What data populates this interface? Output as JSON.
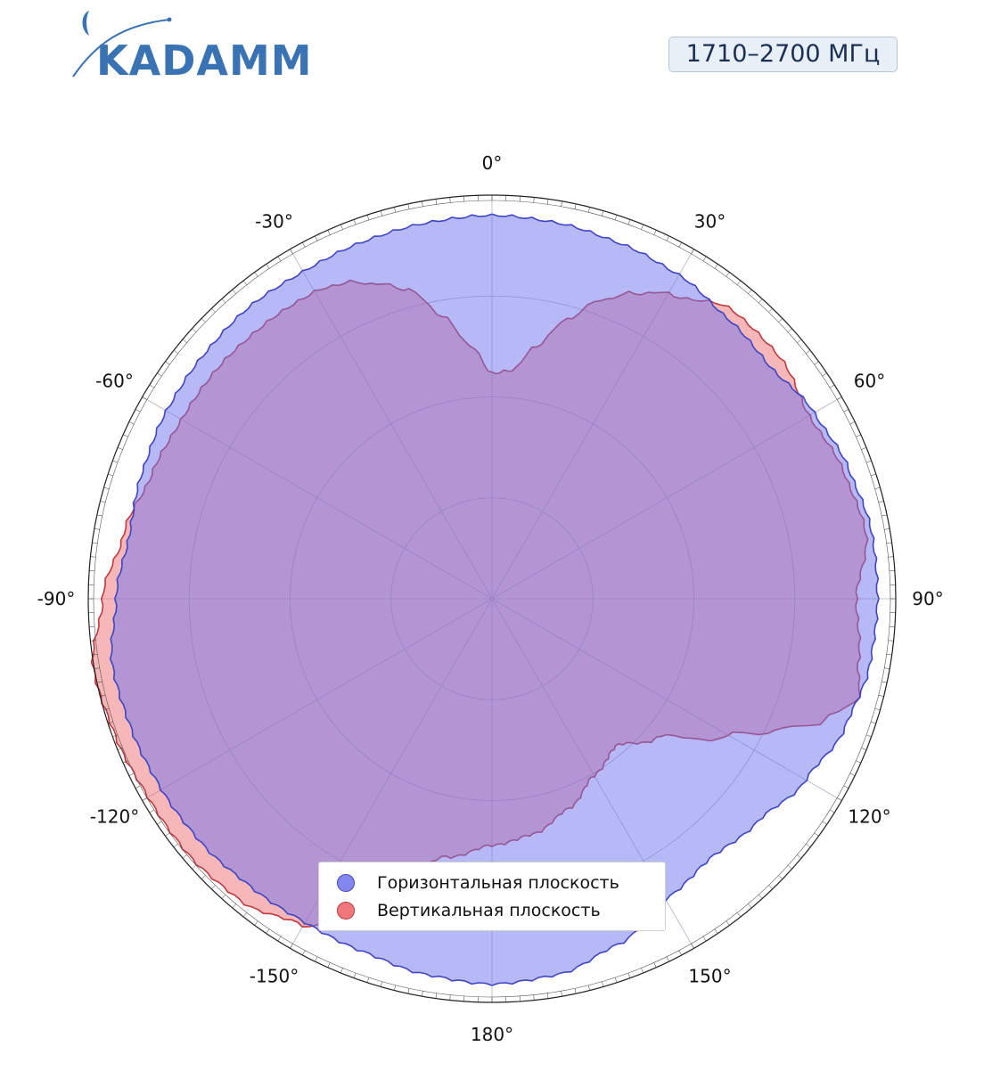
{
  "logo": {
    "text": "KADAMM",
    "color": "#3a73b3"
  },
  "badge": {
    "text": "1710–2700 МГц"
  },
  "colors": {
    "horizontal_fill": "rgba(110,115,235,0.50)",
    "horizontal_stroke": "#3f45c2",
    "vertical_fill": "rgba(235,95,100,0.45)",
    "vertical_stroke": "#c0393f",
    "grid": "#b0b0c8"
  },
  "chart_data": {
    "type": "polar-area",
    "direction": "clockwise",
    "zero_location": "top",
    "angle_ticks": [
      0,
      30,
      60,
      90,
      120,
      150,
      180,
      -150,
      -120,
      -90,
      -60,
      -30
    ],
    "angle_tick_labels": [
      "0°",
      "30°",
      "60°",
      "90°",
      "120°",
      "150°",
      "180°",
      "-150°",
      "-120°",
      "-90°",
      "-60°",
      "-30°"
    ],
    "r_range": [
      0,
      1
    ],
    "r_grid": [
      0.26,
      0.52,
      0.78,
      1.04
    ],
    "grid": true,
    "legend_position": "bottom-center",
    "series": [
      {
        "name": "Горизонтальная плоскость",
        "angles": [
          0,
          10,
          20,
          30,
          40,
          50,
          60,
          70,
          80,
          90,
          100,
          110,
          120,
          130,
          140,
          150,
          160,
          170,
          180,
          -170,
          -160,
          -150,
          -140,
          -130,
          -120,
          -110,
          -100,
          -90,
          -80,
          -70,
          -60,
          -50,
          -40,
          -30,
          -20,
          -10
        ],
        "values": [
          0.995,
          0.99,
          0.98,
          0.97,
          0.95,
          0.94,
          0.965,
          0.985,
          1.0,
          1.0,
          0.995,
          0.975,
          0.94,
          0.9,
          0.88,
          0.9,
          0.955,
          0.99,
          1.0,
          0.99,
          0.975,
          0.97,
          0.975,
          0.985,
          0.99,
          0.995,
          1.0,
          0.975,
          0.955,
          0.965,
          0.975,
          0.98,
          0.985,
          0.98,
          0.985,
          0.99
        ]
      },
      {
        "name": "Вертикальная плоскость",
        "angles": [
          0,
          5,
          10,
          15,
          20,
          25,
          30,
          40,
          50,
          60,
          70,
          80,
          90,
          100,
          105,
          110,
          115,
          120,
          130,
          140,
          150,
          160,
          170,
          180,
          -170,
          -160,
          -150,
          -140,
          -130,
          -120,
          -110,
          -100,
          -90,
          -80,
          -70,
          -60,
          -50,
          -40,
          -30,
          -25,
          -20,
          -15,
          -10,
          -5
        ],
        "values": [
          0.585,
          0.595,
          0.665,
          0.75,
          0.825,
          0.875,
          0.915,
          0.975,
          0.975,
          0.95,
          0.97,
          0.985,
          0.945,
          0.965,
          0.985,
          0.92,
          0.81,
          0.705,
          0.56,
          0.5,
          0.53,
          0.58,
          0.62,
          0.64,
          0.68,
          0.78,
          0.98,
          1.02,
          1.03,
          1.03,
          1.04,
          1.05,
          1.01,
          0.97,
          0.94,
          0.93,
          0.93,
          0.925,
          0.92,
          0.905,
          0.87,
          0.83,
          0.745,
          0.66
        ]
      }
    ]
  }
}
